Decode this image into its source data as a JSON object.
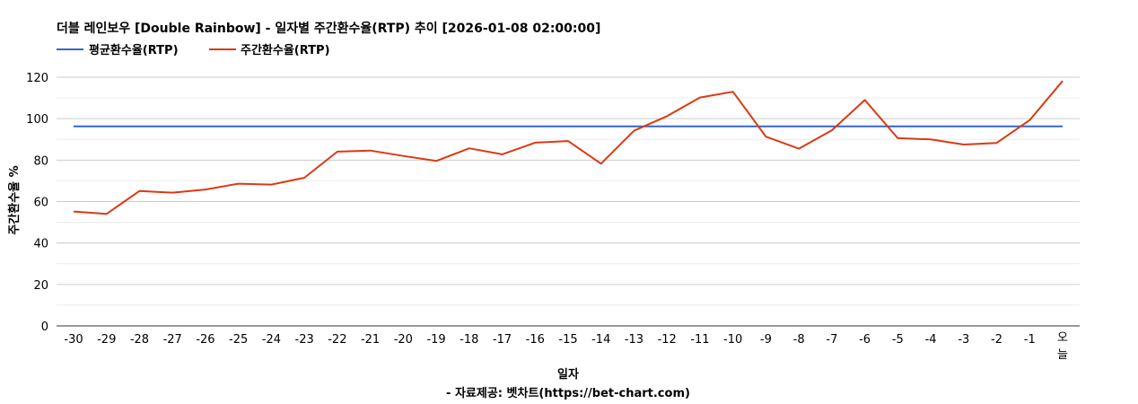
{
  "chart_data": {
    "type": "line",
    "title": "더블 레인보우 [Double Rainbow] - 일자별 주간환수율(RTP) 추이 [2026-01-08 02:00:00]",
    "xlabel": "일자",
    "ylabel": "주간환수율 %",
    "footer": "- 자료제공: 벳차트(https://bet-chart.com)",
    "categories": [
      "-30",
      "-29",
      "-28",
      "-27",
      "-26",
      "-25",
      "-24",
      "-23",
      "-22",
      "-21",
      "-20",
      "-19",
      "-18",
      "-17",
      "-16",
      "-15",
      "-14",
      "-13",
      "-12",
      "-11",
      "-10",
      "-9",
      "-8",
      "-7",
      "-6",
      "-5",
      "-4",
      "-3",
      "-2",
      "-1",
      "오늘"
    ],
    "yticks": [
      "0",
      "20",
      "40",
      "60",
      "80",
      "100",
      "120"
    ],
    "ylim": [
      0,
      120
    ],
    "grid": true,
    "legend_position": "top-left",
    "series": [
      {
        "name": "평균환수율(RTP)",
        "color": "#3366cc",
        "values": [
          96.3,
          96.3,
          96.3,
          96.3,
          96.3,
          96.3,
          96.3,
          96.3,
          96.3,
          96.3,
          96.3,
          96.3,
          96.3,
          96.3,
          96.3,
          96.3,
          96.3,
          96.3,
          96.3,
          96.3,
          96.3,
          96.3,
          96.3,
          96.3,
          96.3,
          96.3,
          96.3,
          96.3,
          96.3,
          96.3,
          96.3
        ]
      },
      {
        "name": "주간환수율(RTP)",
        "color": "#dc3912",
        "values": [
          55.2,
          54.0,
          65.1,
          64.3,
          65.8,
          68.6,
          68.2,
          71.5,
          84.1,
          84.6,
          82.0,
          79.6,
          85.7,
          82.8,
          88.4,
          89.2,
          78.3,
          94.2,
          101.2,
          110.2,
          113.0,
          91.3,
          85.5,
          94.4,
          109.0,
          90.6,
          90.0,
          87.5,
          88.3,
          99.3,
          118.2
        ]
      }
    ]
  }
}
